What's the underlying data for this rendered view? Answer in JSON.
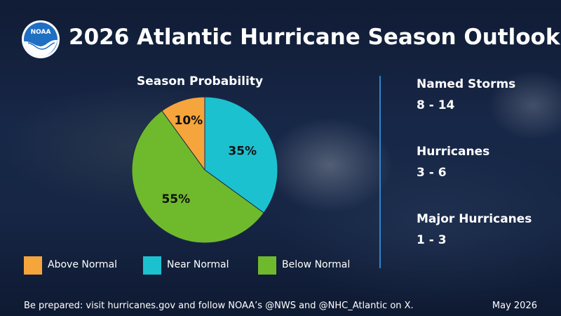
{
  "header": {
    "title": "2026 Atlantic Hurricane Season Outlook",
    "logo_text": "NOAA"
  },
  "chart_data": {
    "type": "pie",
    "title": "Season Probability",
    "slices": [
      {
        "label": "Above Normal",
        "value": 10,
        "display": "10%",
        "color": "#f6a53c"
      },
      {
        "label": "Near Normal",
        "value": 35,
        "display": "35%",
        "color": "#1cc1d0"
      },
      {
        "label": "Below Normal",
        "value": 55,
        "display": "55%",
        "color": "#6fba2c"
      }
    ],
    "legend_position": "bottom"
  },
  "stats": [
    {
      "label": "Named Storms",
      "value": "8 - 14"
    },
    {
      "label": "Hurricanes",
      "value": "3 - 6"
    },
    {
      "label": "Major Hurricanes",
      "value": "1 - 3"
    }
  ],
  "footer": {
    "message": "Be prepared: visit hurricanes.gov and follow NOAA’s @NWS and @NHC_Atlantic on X.",
    "date": "May 2026"
  },
  "colors": {
    "divider": "#2f86c9",
    "background": "#1b2a45"
  }
}
